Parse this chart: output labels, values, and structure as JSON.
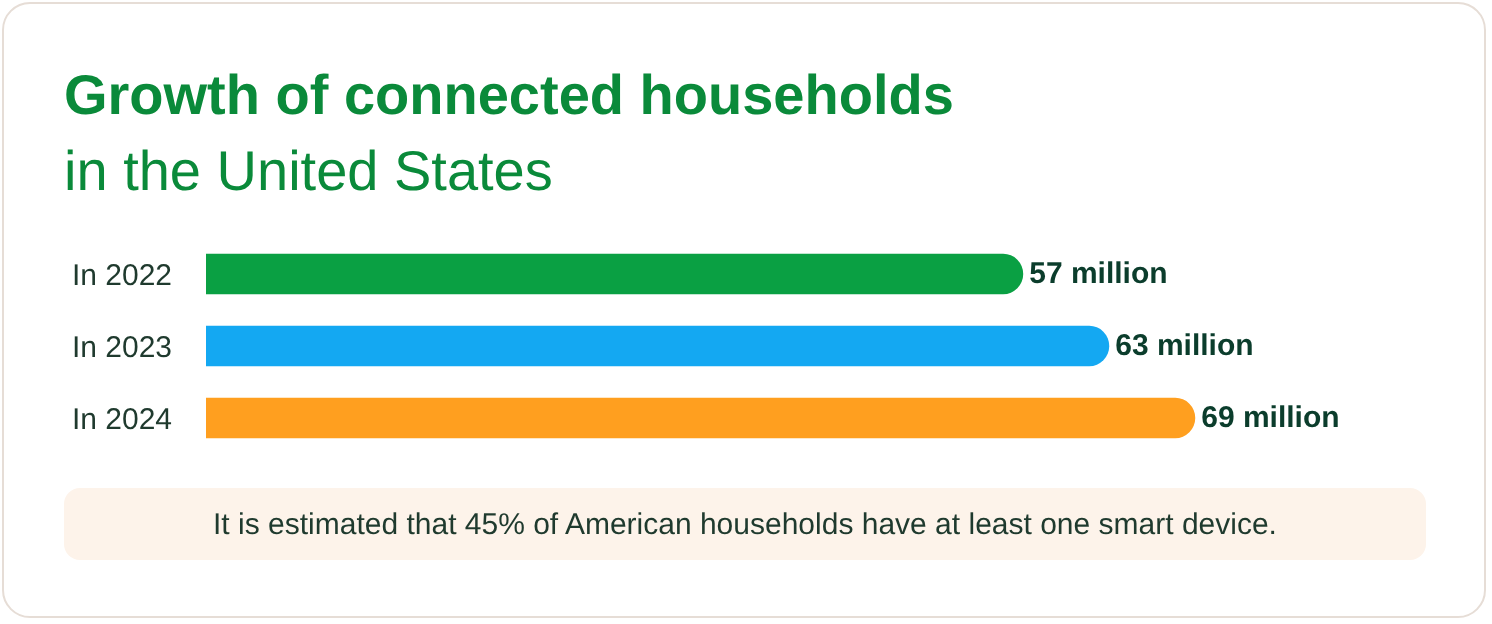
{
  "chart_data": {
    "type": "bar",
    "orientation": "horizontal",
    "title": "Growth of connected households",
    "subtitle": "in the United States",
    "categories": [
      "In 2022",
      "In 2023",
      "In 2024"
    ],
    "values": [
      57,
      63,
      69
    ],
    "colors": [
      "#0aa043",
      "#14a8f2",
      "#ff9f1f"
    ],
    "value_labels": [
      "57 million",
      "63 million",
      "69 million"
    ],
    "legend": false,
    "grid": false,
    "annotations": [
      "It is estimated that 45% of American households have at least one smart device."
    ]
  }
}
